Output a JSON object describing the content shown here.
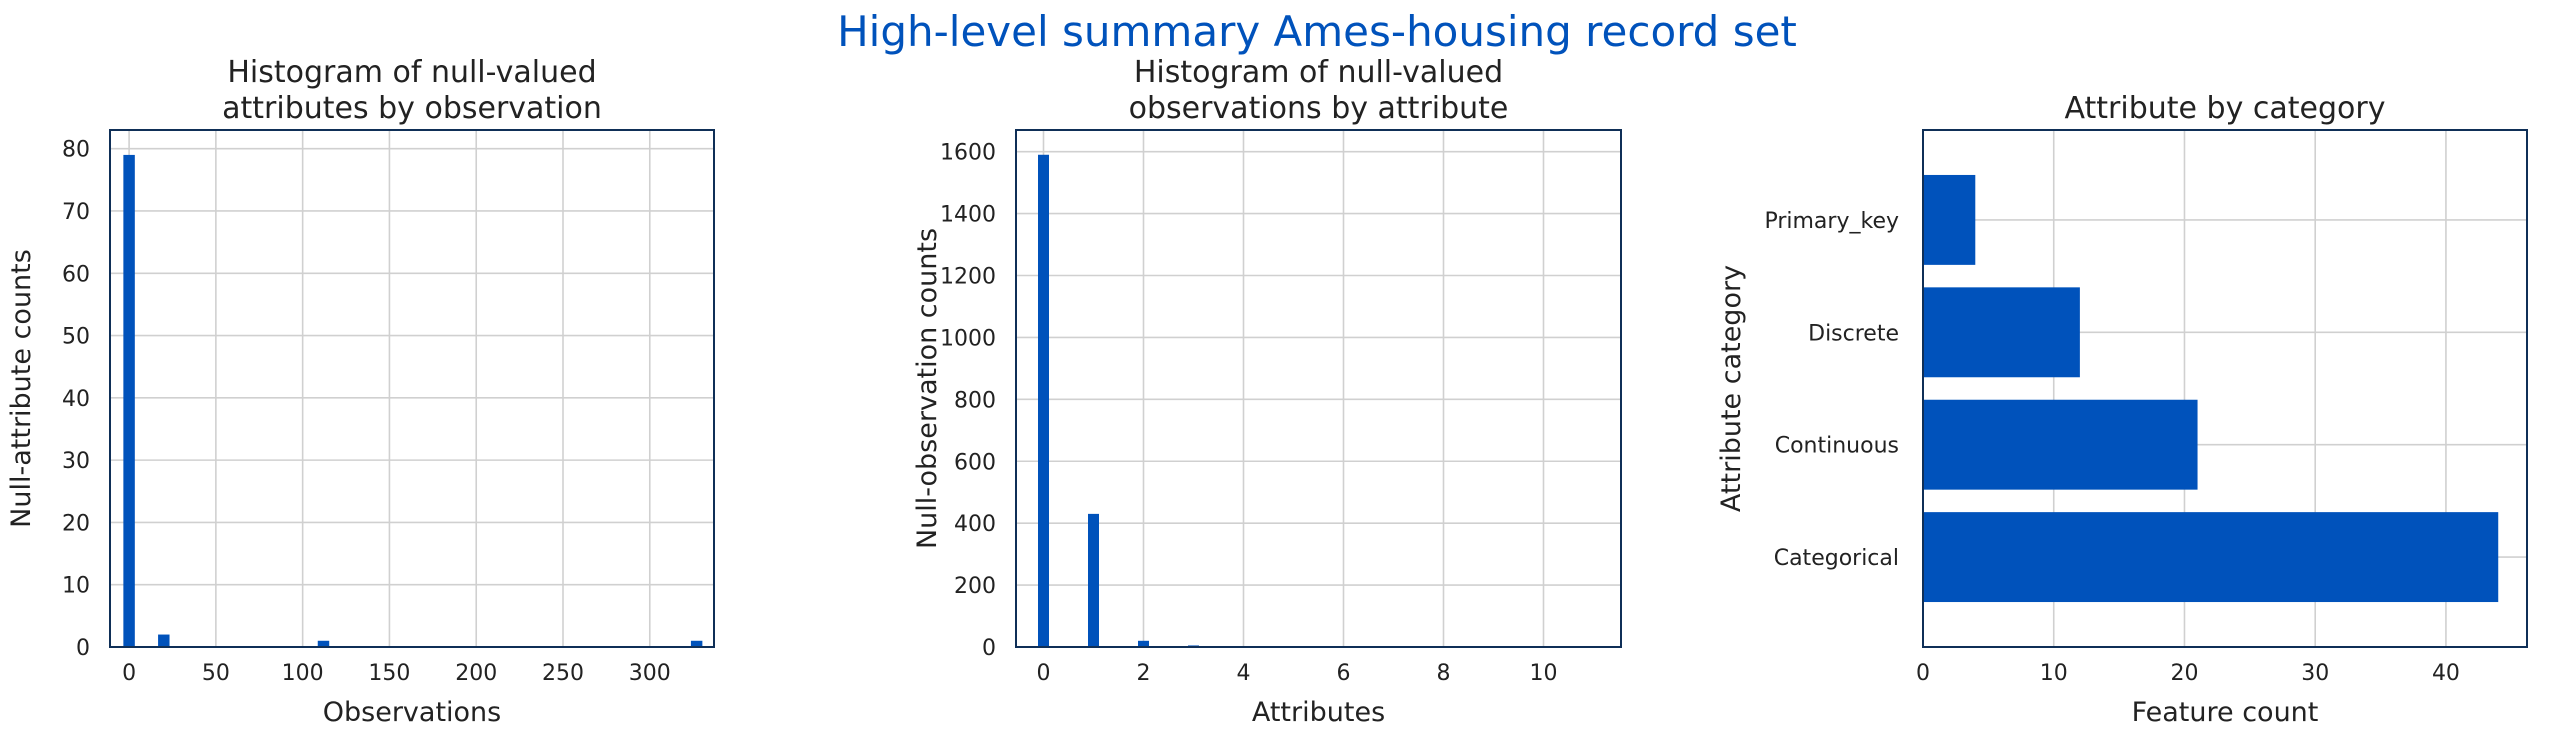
{
  "figure": {
    "suptitle": "High-level summary Ames-housing record set",
    "bar_color": "#0052bb",
    "title_color": "#0052bb",
    "frame_color": "#0f2f57",
    "grid_color": "#d0d0d0"
  },
  "chart_data": [
    {
      "type": "bar",
      "title": "Histogram of null-valued\nattributes by observation",
      "xlabel": "Observations",
      "ylabel": "Null-attribute counts",
      "xlim": [
        -11,
        337
      ],
      "ylim": [
        0,
        83
      ],
      "xticks": [
        0,
        50,
        100,
        150,
        200,
        250,
        300
      ],
      "yticks": [
        0,
        10,
        20,
        30,
        40,
        50,
        60,
        70,
        80
      ],
      "bin_width": 6.6,
      "x": [
        0,
        20,
        112,
        327
      ],
      "values": [
        79,
        2,
        1,
        1
      ],
      "grid": true
    },
    {
      "type": "bar",
      "title": "Histogram of null-valued\nobservations by attribute",
      "xlabel": "Attributes",
      "ylabel": "Null-observation counts",
      "xlim": [
        -0.55,
        11.55
      ],
      "ylim": [
        0,
        1670
      ],
      "xticks": [
        0,
        2,
        4,
        6,
        8,
        10
      ],
      "yticks": [
        0,
        200,
        400,
        600,
        800,
        1000,
        1200,
        1400,
        1600
      ],
      "bin_width": 0.22,
      "x": [
        0,
        1,
        2,
        3
      ],
      "values": [
        1590,
        430,
        20,
        5
      ],
      "grid": true
    },
    {
      "type": "barh",
      "title": "Attribute by category",
      "xlabel": "Feature count",
      "ylabel": "Attribute category",
      "xlim": [
        0,
        46.2
      ],
      "xticks": [
        0,
        10,
        20,
        30,
        40
      ],
      "categories": [
        "Categorical",
        "Continuous",
        "Discrete",
        "Primary_key"
      ],
      "values": [
        44,
        21,
        12,
        4
      ],
      "grid": true
    }
  ]
}
